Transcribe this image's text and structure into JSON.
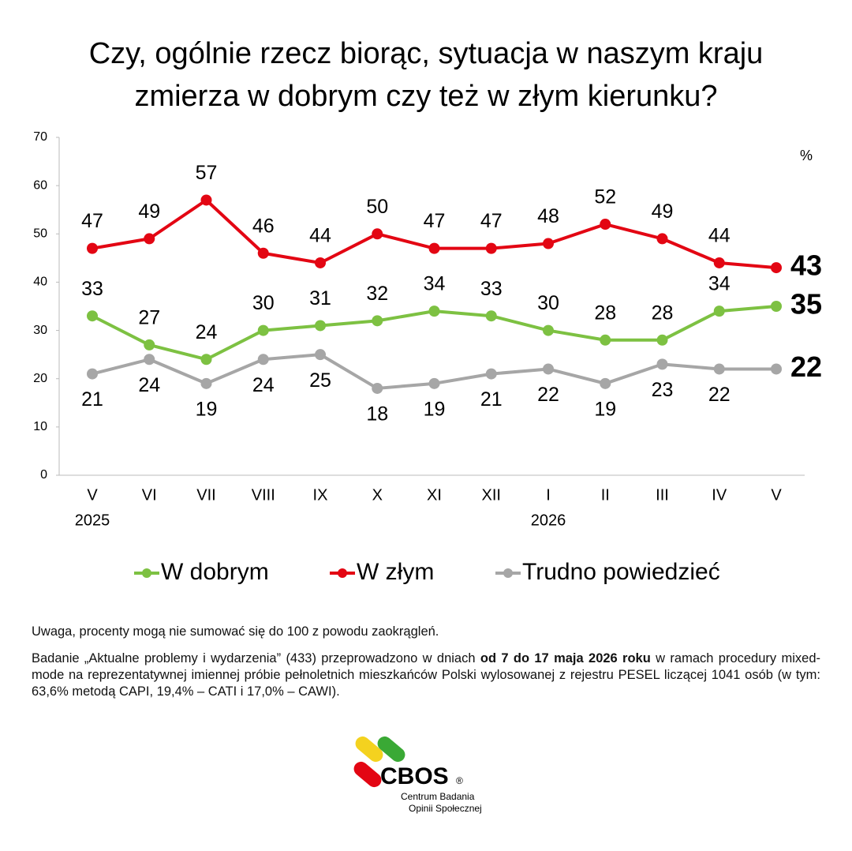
{
  "chart_data": {
    "type": "line",
    "title": [
      "Czy, ogólnie rzecz biorąc, sytuacja w naszym kraju",
      "zmierza w dobrym czy też w złym kierunku?"
    ],
    "unit": "%",
    "categories": [
      "V",
      "VI",
      "VII",
      "VIII",
      "IX",
      "X",
      "XI",
      "XII",
      "I",
      "II",
      "III",
      "IV",
      "V"
    ],
    "year_labels": [
      "2025",
      null,
      null,
      null,
      null,
      null,
      null,
      null,
      "2026",
      null,
      null,
      null,
      null
    ],
    "series": [
      {
        "name": "W dobrym",
        "color": "#7dc142",
        "values": [
          33,
          27,
          24,
          30,
          31,
          32,
          34,
          33,
          30,
          28,
          28,
          34,
          35
        ]
      },
      {
        "name": "W złym",
        "color": "#e30613",
        "values": [
          47,
          49,
          57,
          46,
          44,
          50,
          47,
          47,
          48,
          52,
          49,
          44,
          43
        ]
      },
      {
        "name": "Trudno powiedzieć",
        "color": "#a6a6a6",
        "values": [
          21,
          24,
          19,
          24,
          25,
          18,
          19,
          21,
          22,
          19,
          23,
          22,
          22
        ]
      }
    ],
    "ylim": [
      0,
      70
    ],
    "yticks": [
      0,
      10,
      20,
      30,
      40,
      50,
      60,
      70
    ],
    "grid": false,
    "legend": "bottom"
  },
  "notes": {
    "caveat": "Uwaga, procenty mogą nie sumować się do 100 z powodu zaokrągleń.",
    "method": [
      "Badanie „Aktualne problemy i wydarzenia” (433) przeprowadzono w dniach ",
      "od 7 do 17 maja 2026 roku",
      " w ramach procedury mixed-mode na reprezentatywnej imiennej próbie pełnoletnich mieszkańców Polski wylosowanej z rejestru PESEL liczącej 1041 osób (w tym: 63,6% metodą CAPI, 19,4% – CATI i 17,0% – CAWI)."
    ]
  },
  "logo": {
    "name": "CBOS",
    "mark": "®",
    "line1": "Centrum Badania",
    "line2": "Opinii Społecznej"
  }
}
